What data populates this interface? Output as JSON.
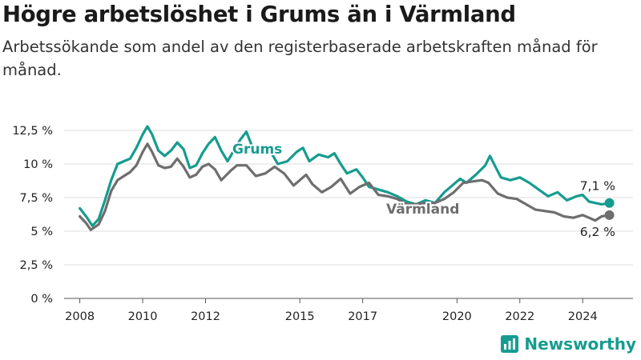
{
  "title": "Högre arbetslöshet i Grums än i Värmland",
  "subtitle": "Arbetssökande som andel av den registerbaserade arbetskraften månad för månad.",
  "brand": {
    "name": "Newsworthy",
    "icon": "newsworthy-chart-icon",
    "color": "#169c8f"
  },
  "chart_data": {
    "type": "line",
    "title": "Högre arbetslöshet i Grums än i Värmland",
    "subtitle": "Arbetssökande som andel av den registerbaserade arbetskraften månad för månad.",
    "xlabel": "",
    "ylabel": "",
    "xlim": [
      2007.5,
      2025.6
    ],
    "ylim": [
      0,
      12.5
    ],
    "grid": true,
    "x_ticks": [
      {
        "value": 2008,
        "label": "2008"
      },
      {
        "value": 2010,
        "label": "2010"
      },
      {
        "value": 2012,
        "label": "2012"
      },
      {
        "value": 2015,
        "label": "2015"
      },
      {
        "value": 2017,
        "label": "2017"
      },
      {
        "value": 2020,
        "label": "2020"
      },
      {
        "value": 2022,
        "label": "2022"
      },
      {
        "value": 2024,
        "label": "2024"
      }
    ],
    "y_ticks": [
      {
        "value": 0,
        "label": "0 %"
      },
      {
        "value": 2.5,
        "label": "2,5 %"
      },
      {
        "value": 5,
        "label": "5 %"
      },
      {
        "value": 7.5,
        "label": "7,5 %"
      },
      {
        "value": 10,
        "label": "10 %"
      },
      {
        "value": 12.5,
        "label": "12,5 %"
      }
    ],
    "series": [
      {
        "name": "Grums",
        "color": "#169c8f",
        "end_label": "7,1 %",
        "points": [
          [
            2008.0,
            6.7
          ],
          [
            2008.2,
            6.1
          ],
          [
            2008.4,
            5.4
          ],
          [
            2008.6,
            5.9
          ],
          [
            2008.8,
            7.3
          ],
          [
            2009.0,
            8.8
          ],
          [
            2009.2,
            10.0
          ],
          [
            2009.4,
            10.2
          ],
          [
            2009.6,
            10.4
          ],
          [
            2009.8,
            11.2
          ],
          [
            2010.0,
            12.2
          ],
          [
            2010.15,
            12.8
          ],
          [
            2010.3,
            12.2
          ],
          [
            2010.5,
            11.0
          ],
          [
            2010.7,
            10.6
          ],
          [
            2010.9,
            11.0
          ],
          [
            2011.1,
            11.6
          ],
          [
            2011.3,
            11.1
          ],
          [
            2011.5,
            9.7
          ],
          [
            2011.7,
            9.9
          ],
          [
            2011.9,
            10.8
          ],
          [
            2012.1,
            11.5
          ],
          [
            2012.3,
            12.0
          ],
          [
            2012.5,
            11.0
          ],
          [
            2012.7,
            10.2
          ],
          [
            2012.9,
            11.0
          ],
          [
            2013.1,
            11.8
          ],
          [
            2013.3,
            12.4
          ],
          [
            2013.5,
            11.2
          ],
          [
            2013.7,
            10.8
          ],
          [
            2014.0,
            11.2
          ],
          [
            2014.3,
            10.0
          ],
          [
            2014.6,
            10.2
          ],
          [
            2014.9,
            10.9
          ],
          [
            2015.1,
            11.2
          ],
          [
            2015.3,
            10.2
          ],
          [
            2015.6,
            10.7
          ],
          [
            2015.9,
            10.5
          ],
          [
            2016.1,
            10.8
          ],
          [
            2016.3,
            10.0
          ],
          [
            2016.5,
            9.3
          ],
          [
            2016.8,
            9.6
          ],
          [
            2017.0,
            9.0
          ],
          [
            2017.2,
            8.3
          ],
          [
            2017.5,
            8.1
          ],
          [
            2017.8,
            7.9
          ],
          [
            2018.1,
            7.6
          ],
          [
            2018.4,
            7.2
          ],
          [
            2018.7,
            7.0
          ],
          [
            2019.0,
            7.3
          ],
          [
            2019.3,
            7.1
          ],
          [
            2019.6,
            7.9
          ],
          [
            2019.9,
            8.5
          ],
          [
            2020.1,
            8.9
          ],
          [
            2020.3,
            8.6
          ],
          [
            2020.6,
            9.2
          ],
          [
            2020.9,
            9.9
          ],
          [
            2021.05,
            10.6
          ],
          [
            2021.2,
            9.9
          ],
          [
            2021.4,
            9.0
          ],
          [
            2021.7,
            8.8
          ],
          [
            2022.0,
            9.0
          ],
          [
            2022.3,
            8.6
          ],
          [
            2022.6,
            8.1
          ],
          [
            2022.9,
            7.6
          ],
          [
            2023.2,
            7.9
          ],
          [
            2023.5,
            7.3
          ],
          [
            2023.8,
            7.6
          ],
          [
            2024.0,
            7.7
          ],
          [
            2024.2,
            7.2
          ],
          [
            2024.4,
            7.1
          ],
          [
            2024.6,
            7.0
          ],
          [
            2024.85,
            7.1
          ]
        ]
      },
      {
        "name": "Värmland",
        "color": "#6e6e6e",
        "end_label": "6,2 %",
        "points": [
          [
            2008.0,
            6.1
          ],
          [
            2008.2,
            5.6
          ],
          [
            2008.35,
            5.1
          ],
          [
            2008.6,
            5.5
          ],
          [
            2008.8,
            6.5
          ],
          [
            2009.0,
            8.0
          ],
          [
            2009.2,
            8.8
          ],
          [
            2009.4,
            9.1
          ],
          [
            2009.6,
            9.4
          ],
          [
            2009.8,
            9.9
          ],
          [
            2010.0,
            10.9
          ],
          [
            2010.15,
            11.5
          ],
          [
            2010.3,
            10.9
          ],
          [
            2010.5,
            9.9
          ],
          [
            2010.7,
            9.7
          ],
          [
            2010.9,
            9.8
          ],
          [
            2011.1,
            10.4
          ],
          [
            2011.3,
            9.8
          ],
          [
            2011.5,
            9.0
          ],
          [
            2011.7,
            9.2
          ],
          [
            2011.9,
            9.8
          ],
          [
            2012.1,
            10.0
          ],
          [
            2012.3,
            9.6
          ],
          [
            2012.5,
            8.8
          ],
          [
            2012.8,
            9.5
          ],
          [
            2013.0,
            9.9
          ],
          [
            2013.3,
            9.9
          ],
          [
            2013.6,
            9.1
          ],
          [
            2013.9,
            9.3
          ],
          [
            2014.2,
            9.8
          ],
          [
            2014.5,
            9.3
          ],
          [
            2014.8,
            8.4
          ],
          [
            2015.0,
            8.8
          ],
          [
            2015.2,
            9.2
          ],
          [
            2015.4,
            8.5
          ],
          [
            2015.7,
            7.9
          ],
          [
            2016.0,
            8.3
          ],
          [
            2016.3,
            8.9
          ],
          [
            2016.6,
            7.8
          ],
          [
            2016.9,
            8.3
          ],
          [
            2017.2,
            8.6
          ],
          [
            2017.5,
            7.7
          ],
          [
            2017.8,
            7.6
          ],
          [
            2018.1,
            7.4
          ],
          [
            2018.4,
            7.0
          ],
          [
            2018.7,
            7.0
          ],
          [
            2019.0,
            7.1
          ],
          [
            2019.3,
            7.1
          ],
          [
            2019.6,
            7.4
          ],
          [
            2019.9,
            7.9
          ],
          [
            2020.2,
            8.6
          ],
          [
            2020.5,
            8.7
          ],
          [
            2020.8,
            8.8
          ],
          [
            2021.0,
            8.6
          ],
          [
            2021.3,
            7.8
          ],
          [
            2021.6,
            7.5
          ],
          [
            2021.9,
            7.4
          ],
          [
            2022.2,
            7.0
          ],
          [
            2022.5,
            6.6
          ],
          [
            2022.8,
            6.5
          ],
          [
            2023.1,
            6.4
          ],
          [
            2023.4,
            6.1
          ],
          [
            2023.7,
            6.0
          ],
          [
            2024.0,
            6.2
          ],
          [
            2024.2,
            6.0
          ],
          [
            2024.4,
            5.8
          ],
          [
            2024.6,
            6.1
          ],
          [
            2024.85,
            6.2
          ]
        ]
      }
    ]
  }
}
